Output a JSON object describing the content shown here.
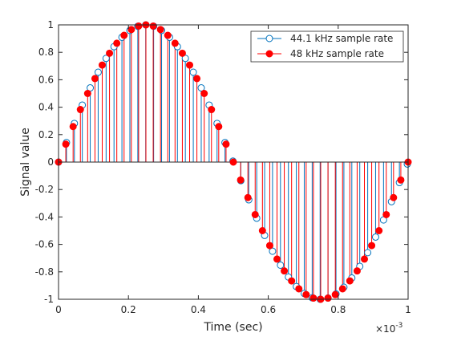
{
  "chart_data": {
    "type": "stem",
    "title": "",
    "xlabel": "Time (sec)",
    "ylabel": "Signal value",
    "x_multiplier_label": "×10",
    "x_multiplier_exponent": "-3",
    "xlim": [
      0,
      0.001
    ],
    "ylim": [
      -1,
      1
    ],
    "x_ticks": [
      0,
      0.0002,
      0.0004,
      0.0006,
      0.0008,
      0.001
    ],
    "x_tick_labels": [
      "0",
      "0.2",
      "0.4",
      "0.6",
      "0.8",
      "1"
    ],
    "y_ticks": [
      -1,
      -0.8,
      -0.6,
      -0.4,
      -0.2,
      0,
      0.2,
      0.4,
      0.6,
      0.8,
      1
    ],
    "y_tick_labels": [
      "-1",
      "-0.8",
      "-0.6",
      "-0.4",
      "-0.2",
      "0",
      "0.2",
      "0.4",
      "0.6",
      "0.8",
      "1"
    ],
    "grid": false,
    "legend_position": "top-right",
    "signal": "sin(2*pi*1000*t)",
    "series": [
      {
        "name": "44.1 kHz sample rate",
        "sample_rate_hz": 44100,
        "marker": "open-circle",
        "color": "#0072BD",
        "t": [
          0,
          2.27e-05,
          4.54e-05,
          6.8e-05,
          9.07e-05,
          0.0001134,
          0.0001361,
          0.0001587,
          0.0001814,
          0.0002041,
          0.0002268,
          0.0002494,
          0.0002721,
          0.0002948,
          0.0003175,
          0.0003401,
          0.0003628,
          0.0003855,
          0.0004082,
          0.0004308,
          0.0004535,
          0.0004762,
          0.0004989,
          0.0005215,
          0.0005442,
          0.0005669,
          0.0005896,
          0.0006122,
          0.0006349,
          0.0006576,
          0.0006803,
          0.0007029,
          0.0007256,
          0.0007483,
          0.000771,
          0.0007937,
          0.0008163,
          0.000839,
          0.0008617,
          0.0008844,
          0.000907,
          0.0009297,
          0.0009524,
          0.0009751,
          0.0009977
        ],
        "values": [
          0,
          0.1423,
          0.2817,
          0.4154,
          0.5406,
          0.6549,
          0.7557,
          0.8413,
          0.9096,
          0.9595,
          0.9898,
          1,
          0.9898,
          0.9595,
          0.9096,
          0.8413,
          0.7557,
          0.6549,
          0.5406,
          0.4154,
          0.2817,
          0.1423,
          0.0071,
          -0.1353,
          -0.2749,
          -0.409,
          -0.5347,
          -0.6497,
          -0.7513,
          -0.8377,
          -0.9069,
          -0.9578,
          -0.9891,
          -1,
          -0.9906,
          -0.9612,
          -0.9123,
          -0.8449,
          -0.7601,
          -0.6601,
          -0.5465,
          -0.4218,
          -0.2885,
          -0.1494,
          -0.0142
        ]
      },
      {
        "name": "48 kHz sample rate",
        "sample_rate_hz": 48000,
        "marker": "filled-circle",
        "color": "#FF0000",
        "t": [
          0,
          2.08e-05,
          4.17e-05,
          6.25e-05,
          8.33e-05,
          0.0001042,
          0.000125,
          0.0001458,
          0.0001667,
          0.0001875,
          0.0002083,
          0.0002292,
          0.00025,
          0.0002708,
          0.0002917,
          0.0003125,
          0.0003333,
          0.0003542,
          0.000375,
          0.0003958,
          0.0004167,
          0.0004375,
          0.0004583,
          0.0004792,
          0.0005,
          0.0005208,
          0.0005417,
          0.0005625,
          0.0005833,
          0.0006042,
          0.000625,
          0.0006458,
          0.0006667,
          0.0006875,
          0.0007083,
          0.0007292,
          0.00075,
          0.0007708,
          0.0007917,
          0.0008125,
          0.0008333,
          0.0008542,
          0.000875,
          0.0008958,
          0.0009167,
          0.0009375,
          0.0009583,
          0.0009792,
          0.001
        ],
        "values": [
          0,
          0.1305,
          0.2588,
          0.3827,
          0.5,
          0.6088,
          0.7071,
          0.7934,
          0.866,
          0.9239,
          0.9659,
          0.9914,
          1,
          0.9914,
          0.9659,
          0.9239,
          0.866,
          0.7934,
          0.7071,
          0.6088,
          0.5,
          0.3827,
          0.2588,
          0.1305,
          0,
          -0.1305,
          -0.2588,
          -0.3827,
          -0.5,
          -0.6088,
          -0.7071,
          -0.7934,
          -0.866,
          -0.9239,
          -0.9659,
          -0.9914,
          -1,
          -0.9914,
          -0.9659,
          -0.9239,
          -0.866,
          -0.7934,
          -0.7071,
          -0.6088,
          -0.5,
          -0.3827,
          -0.2588,
          -0.1305,
          0
        ]
      }
    ]
  }
}
